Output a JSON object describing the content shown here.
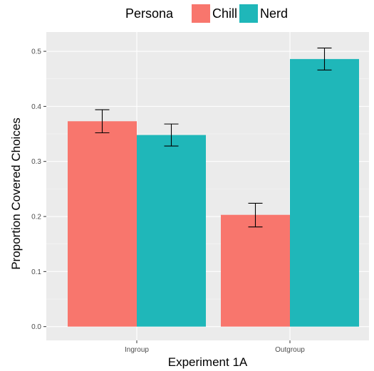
{
  "chart_data": {
    "type": "bar",
    "xlabel": "Experiment 1A",
    "ylabel": "Proportion Covered Choices",
    "categories": [
      "Ingroup",
      "Outgroup"
    ],
    "ylim": [
      -0.025,
      0.535
    ],
    "yticks": [
      0.0,
      0.1,
      0.2,
      0.3,
      0.4,
      0.5
    ],
    "ytick_labels": [
      "0.0",
      "0.1",
      "0.2",
      "0.3",
      "0.4",
      "0.5"
    ],
    "legend": {
      "title": "Persona",
      "position": "top"
    },
    "series": [
      {
        "name": "Chill",
        "color": "#F8766D",
        "values": [
          0.373,
          0.203
        ],
        "error_low": [
          0.352,
          0.181
        ],
        "error_high": [
          0.394,
          0.224
        ]
      },
      {
        "name": "Nerd",
        "color": "#1FB7B9",
        "values": [
          0.348,
          0.486
        ],
        "error_low": [
          0.328,
          0.466
        ],
        "error_high": [
          0.368,
          0.506
        ]
      }
    ],
    "grid": true,
    "panel_background": "#EBEBEB",
    "gridline_color": "#FFFFFF"
  }
}
